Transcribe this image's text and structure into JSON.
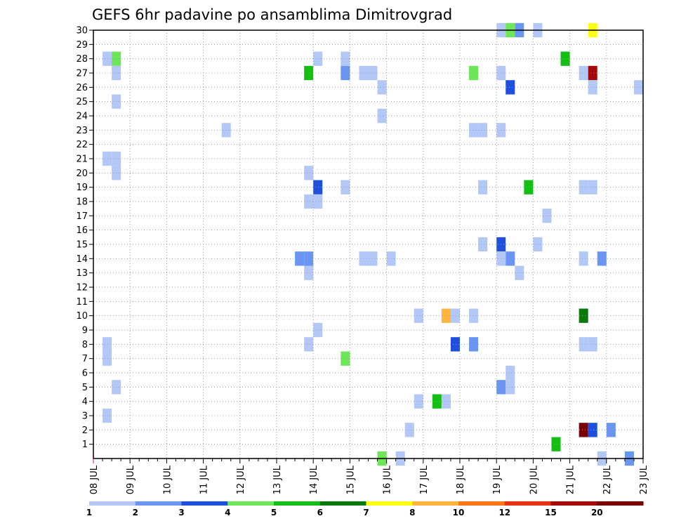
{
  "chart_data": {
    "type": "heatmap",
    "title": "GEFS 6hr padavine po ansamblima Dimitrovgrad",
    "y_ticks": [
      "1",
      "2",
      "3",
      "4",
      "5",
      "6",
      "7",
      "8",
      "9",
      "10",
      "11",
      "12",
      "13",
      "14",
      "15",
      "16",
      "17",
      "18",
      "19",
      "20",
      "21",
      "22",
      "23",
      "24",
      "25",
      "26",
      "27",
      "28",
      "29",
      "30"
    ],
    "ylim": [
      0,
      30
    ],
    "x_ticks": [
      "08 JUL",
      "09 JUL",
      "10 JUL",
      "11 JUL",
      "12 JUL",
      "13 JUL",
      "14 JUL",
      "15 JUL",
      "16 JUL",
      "17 JUL",
      "18 JUL",
      "19 JUL",
      "20 JUL",
      "21 JUL",
      "22 JUL",
      "23 JUL"
    ],
    "x_units": "6-hour steps since 08 JUL 00Z",
    "xlim": [
      0,
      60
    ],
    "grid": true,
    "colorbar": {
      "labels": [
        "1",
        "2",
        "3",
        "4",
        "5",
        "6",
        "7",
        "8",
        "10",
        "12",
        "15",
        "20"
      ],
      "colors": [
        "#b4c8f8",
        "#6a96f2",
        "#1e50dc",
        "#6ee65a",
        "#14be14",
        "#0a780a",
        "#ffff14",
        "#ffb43c",
        "#ff7814",
        "#e63214",
        "#a50a0a",
        "#780000"
      ]
    },
    "cells": [
      {
        "x": 1,
        "m": 28,
        "c": 1
      },
      {
        "x": 2,
        "m": 28,
        "c": 4
      },
      {
        "x": 2,
        "m": 27,
        "c": 1
      },
      {
        "x": 2,
        "m": 25,
        "c": 1
      },
      {
        "x": 1,
        "m": 21,
        "c": 1
      },
      {
        "x": 2,
        "m": 21,
        "c": 1
      },
      {
        "x": 2,
        "m": 20,
        "c": 1
      },
      {
        "x": 1,
        "m": 8,
        "c": 1
      },
      {
        "x": 1,
        "m": 7,
        "c": 1
      },
      {
        "x": 2,
        "m": 5,
        "c": 1
      },
      {
        "x": 1,
        "m": 3,
        "c": 1
      },
      {
        "x": 14,
        "m": 23,
        "c": 1
      },
      {
        "x": 24,
        "m": 28,
        "c": 1
      },
      {
        "x": 23,
        "m": 27,
        "c": 5
      },
      {
        "x": 23,
        "m": 20,
        "c": 1
      },
      {
        "x": 24,
        "m": 19,
        "c": 3
      },
      {
        "x": 23,
        "m": 18,
        "c": 1
      },
      {
        "x": 24,
        "m": 18,
        "c": 1
      },
      {
        "x": 22,
        "m": 14,
        "c": 2
      },
      {
        "x": 23,
        "m": 14,
        "c": 2
      },
      {
        "x": 23,
        "m": 13,
        "c": 1
      },
      {
        "x": 24,
        "m": 9,
        "c": 1
      },
      {
        "x": 23,
        "m": 8,
        "c": 1
      },
      {
        "x": 27,
        "m": 28,
        "c": 1
      },
      {
        "x": 27,
        "m": 27,
        "c": 2
      },
      {
        "x": 27,
        "m": 19,
        "c": 1
      },
      {
        "x": 27,
        "m": 7,
        "c": 4
      },
      {
        "x": 29,
        "m": 27,
        "c": 1
      },
      {
        "x": 30,
        "m": 27,
        "c": 1
      },
      {
        "x": 31,
        "m": 26,
        "c": 1
      },
      {
        "x": 29,
        "m": 14,
        "c": 1
      },
      {
        "x": 30,
        "m": 14,
        "c": 1
      },
      {
        "x": 31,
        "m": 24,
        "c": 1
      },
      {
        "x": 32,
        "m": 14,
        "c": 1
      },
      {
        "x": 31,
        "m": 0,
        "c": 4
      },
      {
        "x": 33,
        "m": 0,
        "c": 1
      },
      {
        "x": 34,
        "m": 2,
        "c": 1
      },
      {
        "x": 35,
        "m": 10,
        "c": 1
      },
      {
        "x": 35,
        "m": 4,
        "c": 1
      },
      {
        "x": 37,
        "m": 4,
        "c": 5
      },
      {
        "x": 38,
        "m": 4,
        "c": 1
      },
      {
        "x": 38,
        "m": 10,
        "c": 8
      },
      {
        "x": 39,
        "m": 10,
        "c": 1
      },
      {
        "x": 39,
        "m": 8,
        "c": 3
      },
      {
        "x": 41,
        "m": 27,
        "c": 4
      },
      {
        "x": 41,
        "m": 10,
        "c": 1
      },
      {
        "x": 41,
        "m": 8,
        "c": 2
      },
      {
        "x": 41,
        "m": 23,
        "c": 1
      },
      {
        "x": 42,
        "m": 23,
        "c": 1
      },
      {
        "x": 42,
        "m": 19,
        "c": 1
      },
      {
        "x": 42,
        "m": 15,
        "c": 1
      },
      {
        "x": 44,
        "m": 30,
        "c": 1
      },
      {
        "x": 45,
        "m": 30,
        "c": 4
      },
      {
        "x": 46,
        "m": 30,
        "c": 2
      },
      {
        "x": 48,
        "m": 30,
        "c": 1
      },
      {
        "x": 44,
        "m": 27,
        "c": 1
      },
      {
        "x": 45,
        "m": 26,
        "c": 3
      },
      {
        "x": 44,
        "m": 23,
        "c": 1
      },
      {
        "x": 47,
        "m": 19,
        "c": 5
      },
      {
        "x": 44,
        "m": 15,
        "c": 3
      },
      {
        "x": 44,
        "m": 14,
        "c": 1
      },
      {
        "x": 45,
        "m": 14,
        "c": 2
      },
      {
        "x": 48,
        "m": 15,
        "c": 1
      },
      {
        "x": 46,
        "m": 13,
        "c": 1
      },
      {
        "x": 49,
        "m": 17,
        "c": 1
      },
      {
        "x": 45,
        "m": 6,
        "c": 1
      },
      {
        "x": 44,
        "m": 5,
        "c": 2
      },
      {
        "x": 45,
        "m": 5,
        "c": 1
      },
      {
        "x": 51,
        "m": 28,
        "c": 5
      },
      {
        "x": 50,
        "m": 1,
        "c": 5
      },
      {
        "x": 53,
        "m": 27,
        "c": 1
      },
      {
        "x": 54,
        "m": 27,
        "c": 11
      },
      {
        "x": 54,
        "m": 26,
        "c": 1
      },
      {
        "x": 59,
        "m": 26,
        "c": 1
      },
      {
        "x": 53,
        "m": 19,
        "c": 1
      },
      {
        "x": 54,
        "m": 19,
        "c": 1
      },
      {
        "x": 53,
        "m": 14,
        "c": 1
      },
      {
        "x": 55,
        "m": 14,
        "c": 2
      },
      {
        "x": 53,
        "m": 10,
        "c": 6
      },
      {
        "x": 53,
        "m": 8,
        "c": 1
      },
      {
        "x": 54,
        "m": 8,
        "c": 1
      },
      {
        "x": 53,
        "m": 2,
        "c": 12
      },
      {
        "x": 54,
        "m": 2,
        "c": 3
      },
      {
        "x": 56,
        "m": 2,
        "c": 2
      },
      {
        "x": 55,
        "m": 0,
        "c": 1
      },
      {
        "x": 58,
        "m": 0,
        "c": 2
      },
      {
        "x": 54,
        "m": 30,
        "c": 7
      }
    ]
  }
}
